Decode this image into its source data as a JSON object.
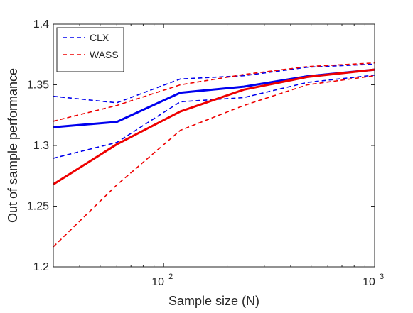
{
  "chart_data": {
    "type": "line",
    "title": "",
    "xlabel": "Sample size (N)",
    "ylabel": "Out of sample performance",
    "xscale": "log",
    "xlim": [
      30,
      1000
    ],
    "ylim": [
      1.2,
      1.4
    ],
    "grid": false,
    "legend_position": "top-left",
    "x_tick_values": [
      100,
      1000
    ],
    "x_tick_labels": [
      {
        "base": "10",
        "exp": "2"
      },
      {
        "base": "10",
        "exp": "3"
      }
    ],
    "y_ticks": [
      1.2,
      1.25,
      1.3,
      1.35,
      1.4
    ],
    "y_tick_labels": [
      "1.2",
      "1.25",
      "1.3",
      "1.35",
      "1.4"
    ],
    "series": [
      {
        "name": "CLX",
        "role": "upper",
        "legend": false,
        "color": "#0000ee",
        "dash": true,
        "x": [
          30,
          60,
          120,
          240,
          480,
          1000
        ],
        "y": [
          1.3405,
          1.3352,
          1.3548,
          1.3575,
          1.3645,
          1.367
        ]
      },
      {
        "name": "CLX",
        "role": "mean",
        "legend": false,
        "color": "#0000ee",
        "dash": false,
        "x": [
          30,
          60,
          120,
          240,
          480,
          1000
        ],
        "y": [
          1.315,
          1.3195,
          1.3435,
          1.3485,
          1.357,
          1.3625
        ]
      },
      {
        "name": "CLX",
        "role": "lower",
        "legend": true,
        "color": "#0000ee",
        "dash": true,
        "x": [
          30,
          60,
          120,
          240,
          480,
          1000
        ],
        "y": [
          1.2895,
          1.3025,
          1.336,
          1.3395,
          1.352,
          1.358
        ]
      },
      {
        "name": "WASS",
        "role": "upper",
        "legend": false,
        "color": "#ee0000",
        "dash": true,
        "x": [
          30,
          60,
          120,
          240,
          480,
          1000
        ],
        "y": [
          1.32,
          1.333,
          1.35,
          1.3585,
          1.365,
          1.368
        ]
      },
      {
        "name": "WASS",
        "role": "mean",
        "legend": false,
        "color": "#ee0000",
        "dash": false,
        "x": [
          30,
          60,
          120,
          240,
          480,
          1000
        ],
        "y": [
          1.268,
          1.301,
          1.328,
          1.346,
          1.3565,
          1.3625
        ]
      },
      {
        "name": "WASS",
        "role": "lower",
        "legend": true,
        "color": "#ee0000",
        "dash": true,
        "x": [
          30,
          60,
          120,
          240,
          480,
          1000
        ],
        "y": [
          1.2165,
          1.2675,
          1.3125,
          1.333,
          1.35,
          1.3575
        ]
      }
    ]
  }
}
